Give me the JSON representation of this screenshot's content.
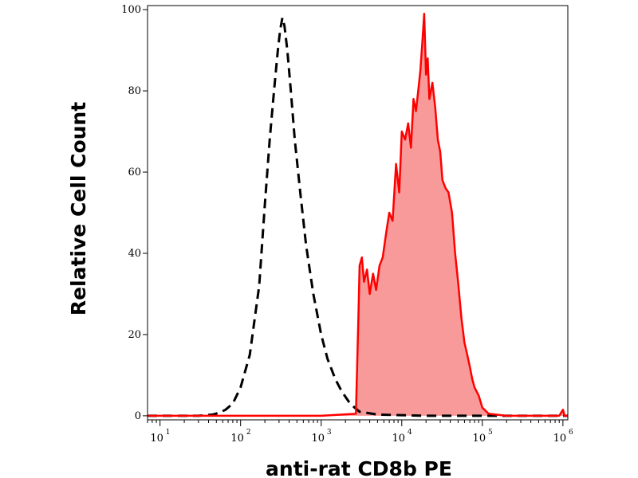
{
  "chart_data": {
    "type": "area",
    "title": "",
    "xlabel": "anti-rat CD8b PE",
    "ylabel": "Relative Cell Count",
    "x_scale": "log",
    "xlim": [
      7,
      1150000
    ],
    "ylim": [
      -1,
      101
    ],
    "x_ticks": [
      {
        "base": "10",
        "exp": "1",
        "value": 10
      },
      {
        "base": "10",
        "exp": "2",
        "value": 100
      },
      {
        "base": "10",
        "exp": "3",
        "value": 1000
      },
      {
        "base": "10",
        "exp": "4",
        "value": 10000
      },
      {
        "base": "10",
        "exp": "5",
        "value": 100000
      },
      {
        "base": "10",
        "exp": "6",
        "value": 1000000
      }
    ],
    "y_ticks": [
      {
        "label": "0",
        "value": 0
      },
      {
        "label": "20",
        "value": 20
      },
      {
        "label": "40",
        "value": 40
      },
      {
        "label": "60",
        "value": 60
      },
      {
        "label": "80",
        "value": 80
      },
      {
        "label": "100",
        "value": 100
      }
    ],
    "grid": false,
    "legend": "none",
    "series": [
      {
        "style": "dashed",
        "color": "#000000",
        "fill": "none",
        "x": [
          7,
          30,
          45,
          55,
          65,
          80,
          100,
          130,
          170,
          200,
          230,
          260,
          290,
          310,
          330,
          350,
          380,
          420,
          470,
          550,
          650,
          800,
          1000,
          1200,
          1500,
          1800,
          2200,
          2600,
          3000,
          5000,
          20000,
          100000,
          1150000
        ],
        "y": [
          0,
          0,
          0.3,
          0.8,
          1.5,
          3,
          7,
          15,
          32,
          52,
          68,
          80,
          90,
          95,
          98,
          96,
          90,
          80,
          68,
          55,
          42,
          30,
          20,
          14,
          9,
          6,
          3.5,
          2,
          1,
          0.3,
          0,
          0,
          0
        ]
      },
      {
        "style": "solid",
        "color": "#ff0000",
        "fill": "#f99a9a",
        "x": [
          7,
          1000,
          2700,
          2900,
          3000,
          3200,
          3400,
          3700,
          4000,
          4400,
          4800,
          5300,
          5800,
          6400,
          7000,
          7700,
          8500,
          9300,
          10000,
          11000,
          12000,
          13000,
          14000,
          15000,
          16000,
          17000,
          18000,
          19000,
          20000,
          21000,
          22000,
          24000,
          26000,
          28000,
          30000,
          32000,
          35000,
          38000,
          42000,
          46000,
          50000,
          55000,
          60000,
          65000,
          70000,
          75000,
          80000,
          90000,
          100000,
          120000,
          200000,
          500000,
          900000,
          1000000,
          1050000,
          1150000
        ],
        "y": [
          0,
          0,
          0.5,
          25,
          37,
          39,
          33,
          36,
          30,
          35,
          31,
          37,
          39,
          45,
          50,
          48,
          62,
          55,
          70,
          68,
          72,
          66,
          78,
          75,
          80,
          85,
          92,
          99,
          84,
          88,
          78,
          82,
          76,
          68,
          65,
          58,
          56,
          55,
          50,
          40,
          33,
          24,
          18,
          15,
          12,
          9,
          7,
          5,
          2,
          0.5,
          0,
          0,
          0,
          1.5,
          0,
          0
        ]
      }
    ]
  }
}
